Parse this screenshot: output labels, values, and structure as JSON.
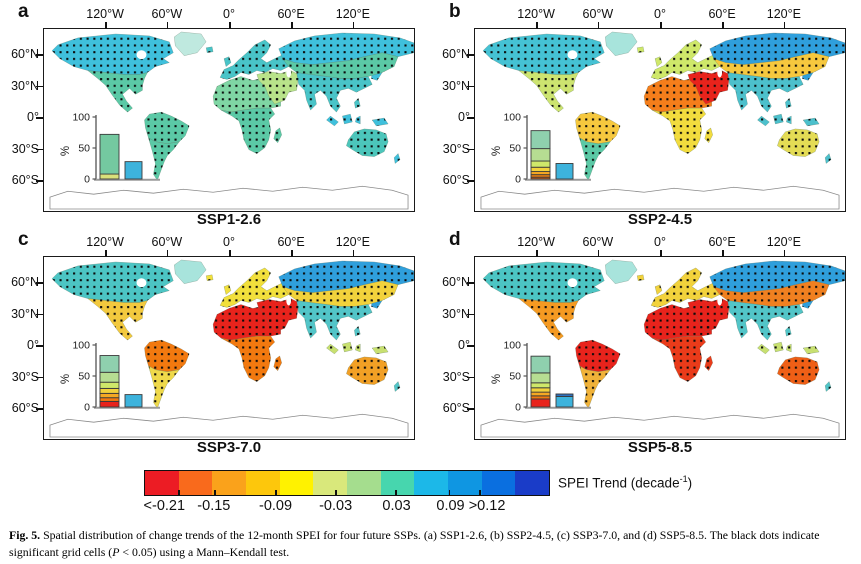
{
  "panels": [
    {
      "letter": "a",
      "title": "SSP1-2.6",
      "map": {
        "greenland": "#bfe9df",
        "na_north": "#3fc0dc",
        "na_south": "#5bc9a6",
        "sa_north": "#5bc9a6",
        "sa_south": "#5bc9a6",
        "europe": "#49c4c8",
        "africa_north": "#7fd6a4",
        "africa_south": "#5bc9a6",
        "arabia": "#b9e38a",
        "asia_north": "#3fc0dc",
        "asia_central": "#5bc9a6",
        "asia_south": "#49c4c8",
        "sea_islands": "#3fc0dc",
        "australia": "#4cc6bb",
        "nz": "#3fc0dc"
      },
      "inset": {
        "stack": [
          [
            "#d9e07a",
            8
          ],
          [
            "#74c9a0",
            64
          ]
        ],
        "sig": [
          [
            "#3db3dc",
            28
          ]
        ]
      }
    },
    {
      "letter": "b",
      "title": "SSP2-4.5",
      "map": {
        "greenland": "#a8e4dc",
        "na_north": "#45c2d4",
        "na_south": "#cde470",
        "sa_north": "#f6c83e",
        "sa_south": "#5bc9a6",
        "europe": "#cfe86a",
        "africa_north": "#f57e1b",
        "africa_south": "#f2dc3e",
        "arabia": "#e8231c",
        "asia_north": "#2f9fdc",
        "asia_central": "#f6c83e",
        "asia_south": "#4cc0cc",
        "sea_islands": "#4cc0cc",
        "australia": "#e4dc55",
        "nz": "#4cc0cc"
      },
      "inset": {
        "stack": [
          [
            "#cc5a12",
            3
          ],
          [
            "#f2820f",
            4
          ],
          [
            "#f5a823",
            5
          ],
          [
            "#f2d23c",
            7
          ],
          [
            "#cfe86a",
            10
          ],
          [
            "#b6dd92",
            20
          ],
          [
            "#8fd0ae",
            29
          ]
        ],
        "sig": [
          [
            "#3db3dc",
            25
          ]
        ]
      }
    },
    {
      "letter": "c",
      "title": "SSP3-7.0",
      "map": {
        "greenland": "#a8e4dc",
        "na_north": "#4cc5c4",
        "na_south": "#f3c93e",
        "sa_north": "#f2790f",
        "sa_south": "#efd94a",
        "europe": "#f2e03c",
        "africa_north": "#e8231c",
        "africa_south": "#f2790f",
        "arabia": "#e8231c",
        "asia_north": "#2f9fdc",
        "asia_central": "#f2d23c",
        "asia_south": "#52c5c8",
        "sea_islands": "#c8e070",
        "australia": "#f2a025",
        "nz": "#52c5c8"
      },
      "inset": {
        "stack": [
          [
            "#e8231c",
            9
          ],
          [
            "#f2790f",
            6
          ],
          [
            "#f5a823",
            7
          ],
          [
            "#f2d23c",
            8
          ],
          [
            "#cfe86a",
            10
          ],
          [
            "#b6dd92",
            16
          ],
          [
            "#8fd0ae",
            27
          ]
        ],
        "sig": [
          [
            "#3db3dc",
            20
          ]
        ]
      }
    },
    {
      "letter": "d",
      "title": "SSP5-8.5",
      "map": {
        "greenland": "#a8e4dc",
        "na_north": "#4cc5c4",
        "na_south": "#f59a22",
        "sa_north": "#e8231c",
        "sa_south": "#f0b239",
        "europe": "#f2d23c",
        "africa_north": "#e8231c",
        "africa_south": "#ea3b1a",
        "arabia": "#e8231c",
        "asia_north": "#2f9fdc",
        "asia_central": "#f08020",
        "asia_south": "#52c5c8",
        "sea_islands": "#c8e070",
        "australia": "#ef5f16",
        "nz": "#52c5c8"
      },
      "inset": {
        "stack": [
          [
            "#e8231c",
            13
          ],
          [
            "#f2790f",
            5
          ],
          [
            "#f5a823",
            6
          ],
          [
            "#f2d23c",
            7
          ],
          [
            "#cfe86a",
            8
          ],
          [
            "#b6dd92",
            16
          ],
          [
            "#8fd0ae",
            27
          ]
        ],
        "sig": [
          [
            "#3db3dc",
            17
          ],
          [
            "#2e6fbd",
            4
          ]
        ]
      }
    }
  ],
  "axes": {
    "top": [
      "120°W",
      "60°W",
      "0°",
      "60°E",
      "120°E"
    ],
    "left": [
      "60°N",
      "30°N",
      "0°",
      "30°S",
      "60°S"
    ]
  },
  "inset_axis": {
    "label": "%",
    "ticks": [
      "0",
      "50",
      "100"
    ]
  },
  "colorbar": {
    "colors": [
      "#ec1c24",
      "#f96a1c",
      "#faa21b",
      "#fdc70c",
      "#fff200",
      "#d9e87b",
      "#a5dd8e",
      "#47d6ae",
      "#1cb8e8",
      "#0f96e2",
      "#0a6fe0",
      "#1a3cc8"
    ],
    "ticks": [
      "<-0.21",
      "-0.15",
      "-0.09",
      "-0.03",
      "0.03",
      "0.09",
      ">0.12"
    ],
    "label_pre": "SPEI Trend (decade",
    "label_sup": "-1",
    "label_post": ")"
  },
  "caption": {
    "label": "Fig. 5.",
    "body1": " Spatial distribution of change trends of the 12-month SPEI for four future SSPs. (a) SSP1-2.6, (b) SSP2-4.5, (c) SSP3-7.0, and (d) SSP5-8.5. The black dots indicate significant grid cells (",
    "p": "P",
    "body2": " < 0.05) using a Mann–Kendall test."
  }
}
